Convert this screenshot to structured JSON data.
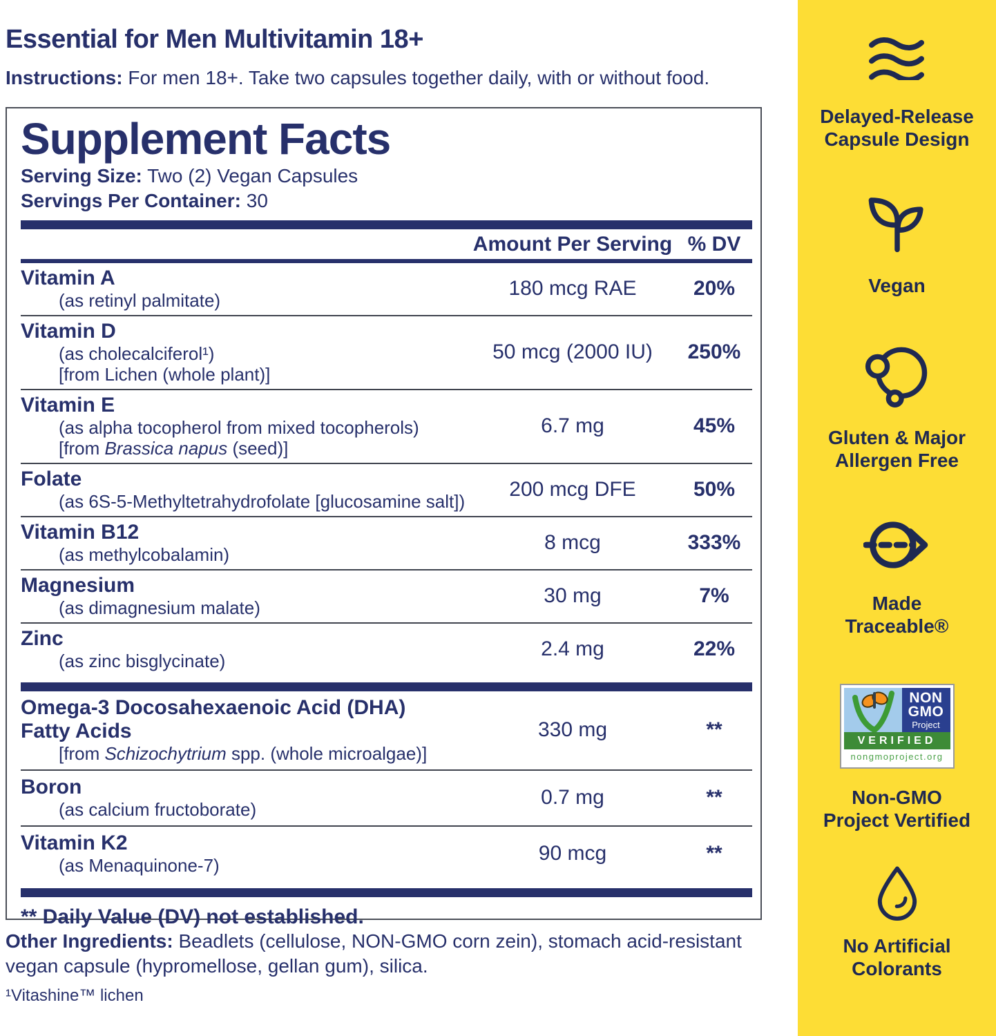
{
  "header": {
    "title": "Essential for Men Multivitamin 18+",
    "instructions_label": "Instructions:",
    "instructions_text": " For men 18+. Take two capsules together daily, with or without food."
  },
  "panel": {
    "title": "Supplement Facts",
    "serving_size_label": "Serving Size:",
    "serving_size_value": " Two (2) Vegan Capsules",
    "servings_label": "Servings Per Container:",
    "servings_value": " 30",
    "col_amount": "Amount Per Serving",
    "col_dv": "% DV",
    "rows_main": [
      {
        "name_lines": [
          "Vitamin A"
        ],
        "subs": [
          [
            {
              "t": "(as retinyl palmitate)"
            }
          ]
        ],
        "amount": "180 mcg RAE",
        "dv": "20%"
      },
      {
        "name_lines": [
          "Vitamin D"
        ],
        "subs": [
          [
            {
              "t": "(as cholecalciferol¹)"
            }
          ],
          [
            {
              "t": "[from Lichen (whole plant)]"
            }
          ]
        ],
        "amount": "50 mcg (2000 IU)",
        "dv": "250%"
      },
      {
        "name_lines": [
          "Vitamin E"
        ],
        "subs": [
          [
            {
              "t": "(as alpha tocopherol from mixed tocopherols)"
            }
          ],
          [
            {
              "t": "[from "
            },
            {
              "t": "Brassica napus",
              "i": true
            },
            {
              "t": " (seed)]"
            }
          ]
        ],
        "amount": "6.7 mg",
        "dv": "45%"
      },
      {
        "name_lines": [
          "Folate"
        ],
        "subs": [
          [
            {
              "t": "(as 6S-5-Methyltetrahydrofolate [glucosamine salt])"
            }
          ]
        ],
        "amount": "200 mcg DFE",
        "dv": "50%"
      },
      {
        "name_lines": [
          "Vitamin B12"
        ],
        "subs": [
          [
            {
              "t": "(as methylcobalamin)"
            }
          ]
        ],
        "amount": "8 mcg",
        "dv": "333%"
      },
      {
        "name_lines": [
          "Magnesium"
        ],
        "subs": [
          [
            {
              "t": "(as dimagnesium malate)"
            }
          ]
        ],
        "amount": "30 mg",
        "dv": "7%"
      },
      {
        "name_lines": [
          "Zinc"
        ],
        "subs": [
          [
            {
              "t": "(as zinc bisglycinate)"
            }
          ]
        ],
        "amount": "2.4 mg",
        "dv": "22%"
      }
    ],
    "rows_other": [
      {
        "name_lines": [
          "Omega-3 Docosahexaenoic Acid (DHA)",
          "Fatty Acids"
        ],
        "subs": [
          [
            {
              "t": "[from "
            },
            {
              "t": "Schizochytrium",
              "i": true
            },
            {
              "t": " spp. (whole microalgae)]"
            }
          ]
        ],
        "amount": "330 mg",
        "dv": "**"
      },
      {
        "name_lines": [
          "Boron"
        ],
        "subs": [
          [
            {
              "t": "(as calcium fructoborate)"
            }
          ]
        ],
        "amount": "0.7 mg",
        "dv": "**"
      },
      {
        "name_lines": [
          "Vitamin K2"
        ],
        "subs": [
          [
            {
              "t": "(as Menaquinone-7)"
            }
          ]
        ],
        "amount": "90 mcg",
        "dv": "**"
      }
    ],
    "footnote": "** Daily Value (DV) not established."
  },
  "other_ingredients": {
    "label": "Other Ingredients:",
    "text": " Beadlets (cellulose, NON-GMO corn zein), stomach acid-resistant vegan capsule (hypromellose, gellan gum), silica."
  },
  "bottom_footnote": "¹Vitashine™ lichen",
  "sidebar": {
    "items": [
      {
        "icon": "waves-icon",
        "label": "Delayed-Release\nCapsule Design"
      },
      {
        "icon": "sprout-icon",
        "label": "Vegan"
      },
      {
        "icon": "molecules-icon",
        "label": "Gluten & Major\nAllergen Free"
      },
      {
        "icon": "traceable-arrow-icon",
        "label": "Made\nTraceable®"
      },
      {
        "icon": "non-gmo-seal",
        "label": "Non-GMO\nProject Vertified"
      },
      {
        "icon": "drop-icon",
        "label": "No Artificial\nColorants"
      }
    ],
    "seal": {
      "non": "NON",
      "gmo": "GMO",
      "project": "Project",
      "verified": "VERIFIED",
      "url": "nongmoproject.org"
    }
  },
  "colors": {
    "navy": "#27306b",
    "sidebar_yellow": "#FDDD35",
    "seal_blue": "#2A3F8F",
    "seal_green": "#3D8B37",
    "seal_sky": "#A3CBEB",
    "butterfly_orange": "#F6921E"
  }
}
